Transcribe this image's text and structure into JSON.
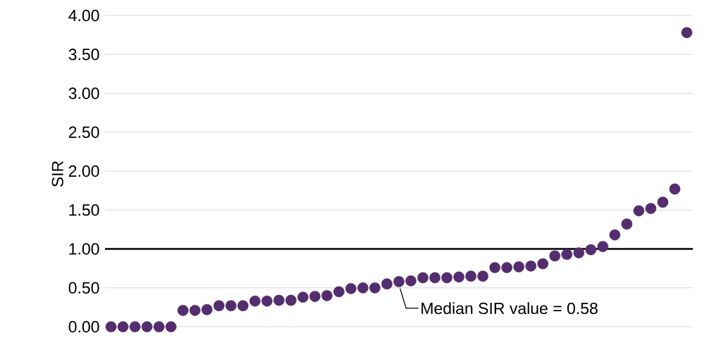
{
  "chart_data": {
    "type": "scatter",
    "ylabel": "SIR",
    "categories": [
      null,
      null,
      null,
      null,
      null,
      null,
      null,
      null,
      null,
      null,
      null,
      null,
      null,
      null,
      null,
      null,
      null,
      null,
      null,
      null,
      null,
      null,
      null,
      null,
      null,
      null,
      null,
      null,
      null,
      null,
      null,
      null,
      null,
      null,
      null,
      null,
      null,
      null,
      null,
      null,
      null,
      null,
      null,
      null,
      null,
      null,
      null,
      null,
      null
    ],
    "values": [
      0,
      0,
      0,
      0,
      0,
      0,
      0.21,
      0.21,
      0.22,
      0.27,
      0.27,
      0.27,
      0.33,
      0.33,
      0.34,
      0.34,
      0.38,
      0.39,
      0.4,
      0.45,
      0.49,
      0.5,
      0.5,
      0.55,
      0.58,
      0.59,
      0.63,
      0.63,
      0.63,
      0.64,
      0.65,
      0.65,
      0.76,
      0.76,
      0.77,
      0.78,
      0.81,
      0.91,
      0.93,
      0.95,
      0.99,
      1.03,
      1.18,
      1.32,
      1.49,
      1.52,
      1.6,
      1.77,
      3.78
    ],
    "color": "#532d6d",
    "grid": "y",
    "ylim": [
      0,
      4
    ],
    "yticks": [
      {
        "value": 0,
        "label": "0.00"
      },
      {
        "value": 0.5,
        "label": "0.50"
      },
      {
        "value": 1,
        "label": "1.00"
      },
      {
        "value": 1.5,
        "label": "1.50"
      },
      {
        "value": 2,
        "label": "2.00"
      },
      {
        "value": 2.5,
        "label": "2.50"
      },
      {
        "value": 3,
        "label": "3.00"
      },
      {
        "value": 3.5,
        "label": "3.50"
      },
      {
        "value": 4,
        "label": "4.00"
      }
    ],
    "ref_lines": [
      {
        "axis": "y",
        "value": 1,
        "color": "#000000"
      }
    ],
    "annotations": [
      "Median SIR value = 0.58"
    ]
  }
}
